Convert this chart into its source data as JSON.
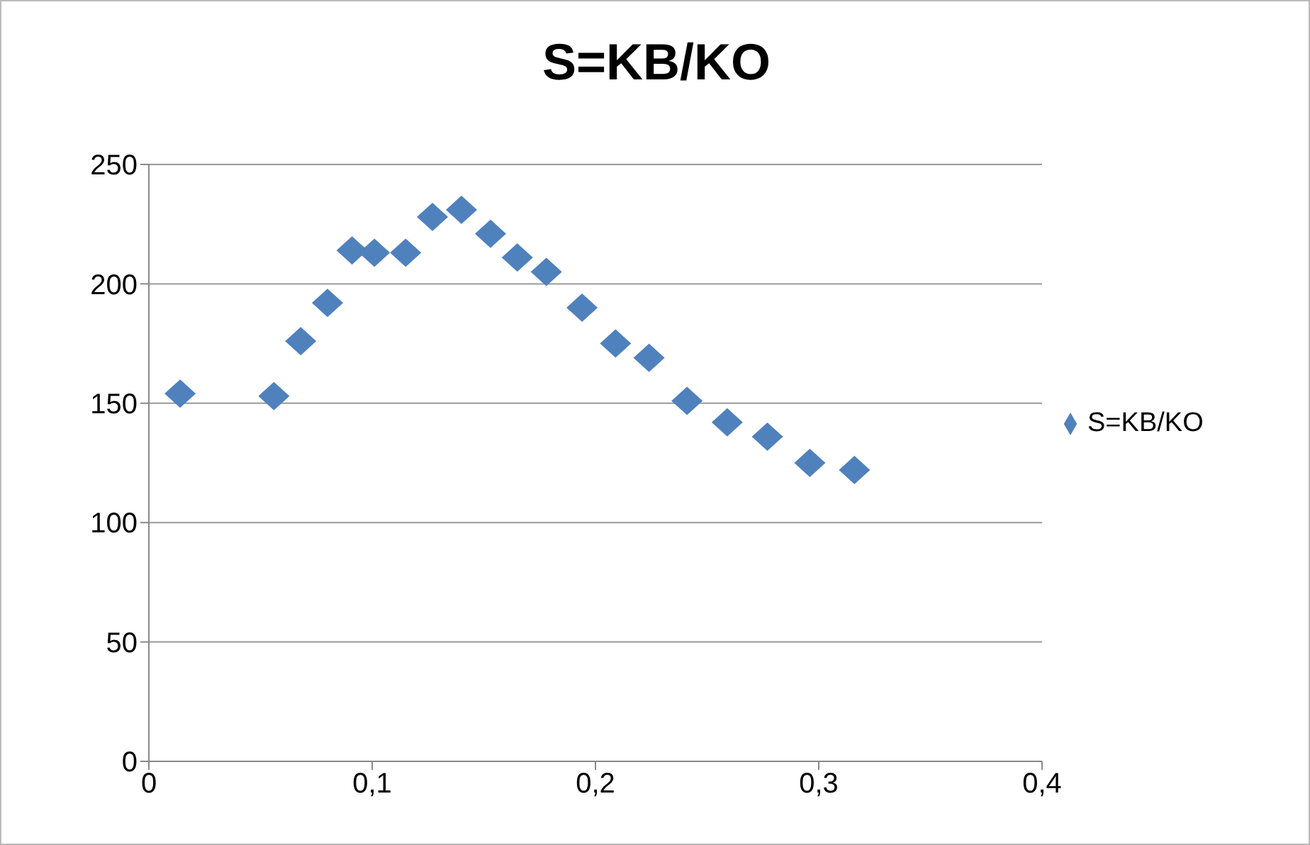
{
  "chart_data": {
    "type": "scatter",
    "title": "S=KB/KO",
    "x": [
      0.014,
      0.056,
      0.068,
      0.08,
      0.091,
      0.101,
      0.115,
      0.127,
      0.14,
      0.153,
      0.165,
      0.178,
      0.194,
      0.209,
      0.224,
      0.241,
      0.259,
      0.277,
      0.296,
      0.316
    ],
    "series": [
      {
        "name": "S=KB/KO",
        "color": "#4f81bd",
        "values": [
          154,
          153,
          176,
          192,
          214,
          213,
          213,
          228,
          231,
          221,
          211,
          205,
          190,
          175,
          169,
          151,
          142,
          136,
          125,
          122
        ]
      }
    ],
    "xlim": [
      0,
      0.4
    ],
    "xticks": [
      {
        "value": 0,
        "label": "0"
      },
      {
        "value": 0.1,
        "label": "0,1"
      },
      {
        "value": 0.2,
        "label": "0,2"
      },
      {
        "value": 0.3,
        "label": "0,3"
      },
      {
        "value": 0.4,
        "label": "0,4"
      }
    ],
    "ylim": [
      0,
      250
    ],
    "yticks": [
      0,
      50,
      100,
      150,
      200,
      250
    ],
    "grid": "y",
    "legend": "right",
    "marker": "diamond"
  }
}
